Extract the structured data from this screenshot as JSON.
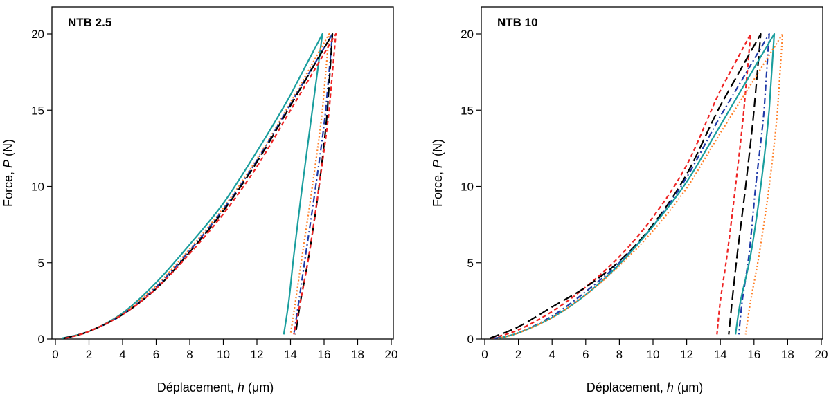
{
  "chart_data": [
    {
      "type": "line",
      "title": "NTB 2.5",
      "xlabel_prefix": "Déplacement, ",
      "xlabel_var": "h",
      "xlabel_unit": " (μm)",
      "ylabel_prefix": "Force, ",
      "ylabel_var": "P",
      "ylabel_unit": " (N)",
      "xlim": [
        0,
        20
      ],
      "ylim": [
        0,
        20
      ],
      "xticks": [
        "0",
        "2",
        "4",
        "6",
        "8",
        "10",
        "12",
        "14",
        "16",
        "18",
        "20"
      ],
      "yticks": [
        "0",
        "5",
        "10",
        "15",
        "20"
      ],
      "grid": false,
      "series": [
        {
          "color": "#1a9e9e",
          "dash": "solid",
          "loading": {
            "x": [
              0.4,
              2,
              4,
              6,
              8,
              10,
              12,
              14,
              15.9
            ],
            "y": [
              0.05,
              0.5,
              1.7,
              3.7,
              6.2,
              8.9,
              12.3,
              16.0,
              20.0
            ]
          },
          "unloading": {
            "x": [
              15.9,
              15.3,
              14.7,
              14.2,
              13.9,
              13.6
            ],
            "y": [
              20.0,
              15.0,
              10.0,
              5.5,
              2.5,
              0.3
            ]
          }
        },
        {
          "color": "#ff7f27",
          "dash": "dotted",
          "loading": {
            "x": [
              0.6,
              2,
              4,
              6,
              8,
              10,
              12,
              14,
              16.3
            ],
            "y": [
              0.05,
              0.5,
              1.65,
              3.5,
              5.9,
              8.6,
              11.8,
              15.5,
              20.0
            ]
          },
          "unloading": {
            "x": [
              16.3,
              15.9,
              15.3,
              14.7,
              14.3,
              14.0
            ],
            "y": [
              20.0,
              15.0,
              10.0,
              5.5,
              2.5,
              0.3
            ]
          }
        },
        {
          "color": "#1f3aa8",
          "dash": "dashdot",
          "loading": {
            "x": [
              0.6,
              2,
              4,
              6,
              8,
              10,
              12,
              14,
              16.5
            ],
            "y": [
              0.05,
              0.5,
              1.6,
              3.4,
              5.8,
              8.5,
              11.7,
              15.4,
              20.0
            ]
          },
          "unloading": {
            "x": [
              16.5,
              16.1,
              15.5,
              14.9,
              14.5,
              14.2
            ],
            "y": [
              20.0,
              15.0,
              10.0,
              5.5,
              2.5,
              0.3
            ]
          }
        },
        {
          "color": "#000000",
          "dash": "longdash",
          "loading": {
            "x": [
              0.5,
              2,
              4,
              6,
              8,
              10,
              12,
              14,
              16.5
            ],
            "y": [
              0.05,
              0.5,
              1.6,
              3.3,
              5.7,
              8.4,
              11.6,
              15.3,
              20.0
            ]
          },
          "unloading": {
            "x": [
              16.5,
              16.2,
              15.7,
              15.1,
              14.6,
              14.3
            ],
            "y": [
              20.0,
              15.0,
              10.0,
              5.5,
              2.5,
              0.3
            ]
          }
        },
        {
          "color": "#ee2222",
          "dash": "dashed",
          "loading": {
            "x": [
              0.6,
              2,
              4,
              6,
              8,
              10,
              12,
              14,
              16.7
            ],
            "y": [
              0.05,
              0.5,
              1.6,
              3.3,
              5.6,
              8.2,
              11.3,
              15.0,
              20.0
            ]
          },
          "unloading": {
            "x": [
              16.7,
              16.3,
              15.7,
              15.1,
              14.6,
              14.2
            ],
            "y": [
              20.0,
              15.0,
              10.0,
              5.5,
              2.5,
              0.3
            ]
          }
        }
      ]
    },
    {
      "type": "line",
      "title": "NTB 10",
      "xlabel_prefix": "Déplacement, ",
      "xlabel_var": "h",
      "xlabel_unit": " (μm)",
      "ylabel_prefix": "Force, ",
      "ylabel_var": "P",
      "ylabel_unit": " (N)",
      "xlim": [
        0,
        20
      ],
      "ylim": [
        0,
        20
      ],
      "xticks": [
        "0",
        "2",
        "4",
        "6",
        "8",
        "10",
        "12",
        "14",
        "16",
        "18",
        "20"
      ],
      "yticks": [
        "0",
        "5",
        "10",
        "15",
        "20"
      ],
      "grid": false,
      "series": [
        {
          "color": "#ee2222",
          "dash": "dashed",
          "loading": {
            "x": [
              0.4,
              2,
              4,
              6,
              8,
              10,
              12,
              14,
              15.8
            ],
            "y": [
              0.05,
              0.6,
              1.8,
              3.4,
              5.4,
              8.0,
              11.4,
              16.3,
              20.0
            ]
          },
          "unloading": {
            "x": [
              15.8,
              15.4,
              14.9,
              14.4,
              14.0,
              13.8
            ],
            "y": [
              20.0,
              15.0,
              10.0,
              5.5,
              2.5,
              0.3
            ]
          }
        },
        {
          "color": "#000000",
          "dash": "longdash",
          "loading": {
            "x": [
              0.3,
              2,
              4,
              6,
              8,
              10,
              12,
              14,
              16.4
            ],
            "y": [
              0.05,
              0.8,
              2.1,
              3.4,
              5.1,
              7.5,
              10.8,
              15.3,
              20.0
            ]
          },
          "unloading": {
            "x": [
              16.4,
              16.0,
              15.5,
              15.0,
              14.7,
              14.5
            ],
            "y": [
              20.0,
              15.0,
              10.0,
              5.5,
              2.5,
              0.3
            ]
          }
        },
        {
          "color": "#1f3aa8",
          "dash": "dashdot",
          "loading": {
            "x": [
              0.6,
              2,
              4,
              6,
              8,
              10,
              12,
              14,
              16.9
            ],
            "y": [
              0.05,
              0.4,
              1.5,
              3.1,
              5.0,
              7.4,
              10.6,
              14.6,
              20.0
            ]
          },
          "unloading": {
            "x": [
              16.9,
              16.6,
              16.1,
              15.7,
              15.3,
              15.1
            ],
            "y": [
              20.0,
              15.0,
              10.0,
              5.5,
              2.5,
              0.3
            ]
          }
        },
        {
          "color": "#1a9e9e",
          "dash": "solid",
          "loading": {
            "x": [
              0.8,
              2,
              4,
              6,
              8,
              10,
              12,
              14,
              17.2
            ],
            "y": [
              0.05,
              0.4,
              1.4,
              2.9,
              4.9,
              7.4,
              10.3,
              14.0,
              20.0
            ]
          },
          "unloading": {
            "x": [
              17.2,
              16.9,
              16.4,
              15.8,
              15.2,
              14.9
            ],
            "y": [
              20.0,
              15.0,
              10.0,
              5.5,
              2.5,
              0.3
            ]
          }
        },
        {
          "color": "#ff7f27",
          "dash": "dotted",
          "loading": {
            "x": [
              0.8,
              2,
              4,
              6,
              8,
              10,
              12,
              14,
              17.7
            ],
            "y": [
              0.05,
              0.4,
              1.4,
              2.9,
              4.8,
              7.1,
              9.9,
              13.5,
              20.0
            ]
          },
          "unloading": {
            "x": [
              17.7,
              17.4,
              16.9,
              16.3,
              15.8,
              15.5
            ],
            "y": [
              20.0,
              15.0,
              10.0,
              5.5,
              2.5,
              0.3
            ]
          }
        }
      ]
    }
  ]
}
